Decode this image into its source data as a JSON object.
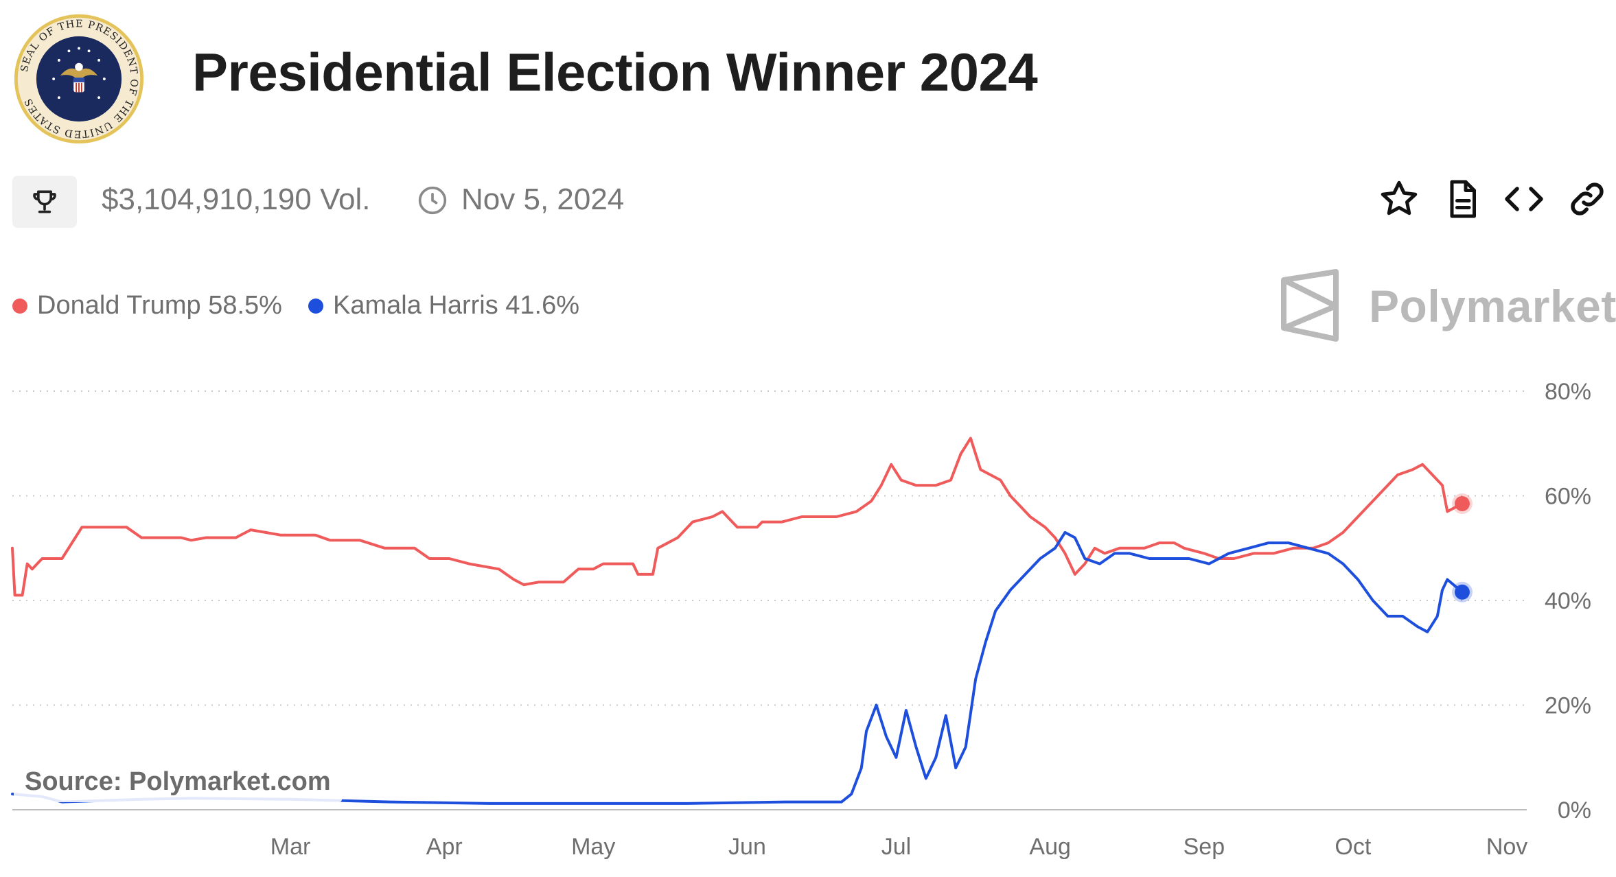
{
  "header": {
    "title": "Presidential Election Winner 2024",
    "seal_text": "SEAL OF THE PRESIDENT OF THE UNITED STATES",
    "volume": "$3,104,910,190 Vol.",
    "end_date": "Nov 5, 2024"
  },
  "icons": {
    "trophy": "trophy-icon",
    "clock": "clock-icon",
    "star": "star-icon",
    "document": "document-icon",
    "embed": "code-icon",
    "link": "link-icon"
  },
  "legend": {
    "items": [
      {
        "label": "Donald Trump 58.5%",
        "color": "#ef5a5a"
      },
      {
        "label": "Kamala Harris 41.6%",
        "color": "#1d4fdc"
      }
    ]
  },
  "branding": {
    "name": "Polymarket",
    "source": "Source: Polymarket.com"
  },
  "chart_data": {
    "type": "line",
    "title": "Presidential Election Winner 2024",
    "ylim": [
      0,
      80
    ],
    "y_ticks": [
      0,
      20,
      40,
      60,
      80
    ],
    "y_tick_labels": [
      "0%",
      "20%",
      "40%",
      "60%",
      "80%"
    ],
    "x_ticks": [
      {
        "label": "Mar",
        "day": 60
      },
      {
        "label": "Apr",
        "day": 91
      },
      {
        "label": "May",
        "day": 121
      },
      {
        "label": "Jun",
        "day": 152
      },
      {
        "label": "Jul",
        "day": 182
      },
      {
        "label": "Aug",
        "day": 213
      },
      {
        "label": "Sep",
        "day": 244
      },
      {
        "label": "Oct",
        "day": 274
      },
      {
        "label": "Nov",
        "day": 305
      }
    ],
    "x_range": [
      4,
      309
    ],
    "series": [
      {
        "name": "Donald Trump",
        "color": "#ef5a5a",
        "final": 58.5,
        "points": [
          [
            4,
            50
          ],
          [
            4.5,
            41
          ],
          [
            6,
            41
          ],
          [
            7,
            47
          ],
          [
            8,
            46
          ],
          [
            10,
            48
          ],
          [
            14,
            48
          ],
          [
            18,
            54
          ],
          [
            27,
            54
          ],
          [
            30,
            52
          ],
          [
            38,
            52
          ],
          [
            40,
            51.5
          ],
          [
            43,
            52
          ],
          [
            49,
            52
          ],
          [
            52,
            53.5
          ],
          [
            55,
            53
          ],
          [
            58,
            52.5
          ],
          [
            65,
            52.5
          ],
          [
            68,
            51.5
          ],
          [
            74,
            51.5
          ],
          [
            79,
            50
          ],
          [
            85,
            50
          ],
          [
            88,
            48
          ],
          [
            92,
            48
          ],
          [
            96,
            47
          ],
          [
            102,
            46
          ],
          [
            105,
            44
          ],
          [
            107,
            43
          ],
          [
            110,
            43.5
          ],
          [
            115,
            43.5
          ],
          [
            118,
            46
          ],
          [
            121,
            46
          ],
          [
            123,
            47
          ],
          [
            129,
            47
          ],
          [
            130,
            45
          ],
          [
            133,
            45
          ],
          [
            134,
            50
          ],
          [
            138,
            52
          ],
          [
            141,
            55
          ],
          [
            145,
            56
          ],
          [
            147,
            57
          ],
          [
            150,
            54
          ],
          [
            154,
            54
          ],
          [
            155,
            55
          ],
          [
            159,
            55
          ],
          [
            163,
            56
          ],
          [
            170,
            56
          ],
          [
            174,
            57
          ],
          [
            177,
            59
          ],
          [
            179,
            62
          ],
          [
            181,
            66
          ],
          [
            183,
            63
          ],
          [
            186,
            62
          ],
          [
            190,
            62
          ],
          [
            193,
            63
          ],
          [
            195,
            68
          ],
          [
            197,
            71
          ],
          [
            199,
            65
          ],
          [
            201,
            64
          ],
          [
            203,
            63
          ],
          [
            205,
            60
          ],
          [
            207,
            58
          ],
          [
            209,
            56
          ],
          [
            212,
            54
          ],
          [
            214,
            52
          ],
          [
            216,
            49
          ],
          [
            218,
            45
          ],
          [
            220,
            47
          ],
          [
            222,
            50
          ],
          [
            224,
            49
          ],
          [
            227,
            50
          ],
          [
            232,
            50
          ],
          [
            235,
            51
          ],
          [
            238,
            51
          ],
          [
            240,
            50
          ],
          [
            244,
            49
          ],
          [
            247,
            48
          ],
          [
            250,
            48
          ],
          [
            254,
            49
          ],
          [
            258,
            49
          ],
          [
            262,
            50
          ],
          [
            266,
            50
          ],
          [
            269,
            51
          ],
          [
            272,
            53
          ],
          [
            275,
            56
          ],
          [
            278,
            59
          ],
          [
            281,
            62
          ],
          [
            283,
            64
          ],
          [
            286,
            65
          ],
          [
            288,
            66
          ],
          [
            290,
            64
          ],
          [
            292,
            62
          ],
          [
            293,
            57
          ],
          [
            296,
            58.5
          ]
        ]
      },
      {
        "name": "Kamala Harris",
        "color": "#1d4fdc",
        "final": 41.6,
        "points": [
          [
            4,
            3
          ],
          [
            10,
            2.5
          ],
          [
            14,
            1.5
          ],
          [
            30,
            2
          ],
          [
            40,
            2.2
          ],
          [
            60,
            2
          ],
          [
            80,
            1.5
          ],
          [
            100,
            1.2
          ],
          [
            120,
            1.2
          ],
          [
            140,
            1.2
          ],
          [
            160,
            1.5
          ],
          [
            171,
            1.5
          ],
          [
            173,
            3
          ],
          [
            175,
            8
          ],
          [
            176,
            15
          ],
          [
            178,
            20
          ],
          [
            180,
            14
          ],
          [
            182,
            10
          ],
          [
            184,
            19
          ],
          [
            186,
            12
          ],
          [
            188,
            6
          ],
          [
            190,
            10
          ],
          [
            192,
            18
          ],
          [
            194,
            8
          ],
          [
            196,
            12
          ],
          [
            198,
            25
          ],
          [
            200,
            32
          ],
          [
            202,
            38
          ],
          [
            205,
            42
          ],
          [
            208,
            45
          ],
          [
            211,
            48
          ],
          [
            214,
            50
          ],
          [
            216,
            53
          ],
          [
            218,
            52
          ],
          [
            220,
            48
          ],
          [
            223,
            47
          ],
          [
            226,
            49
          ],
          [
            229,
            49
          ],
          [
            233,
            48
          ],
          [
            237,
            48
          ],
          [
            241,
            48
          ],
          [
            245,
            47
          ],
          [
            249,
            49
          ],
          [
            253,
            50
          ],
          [
            257,
            51
          ],
          [
            261,
            51
          ],
          [
            265,
            50
          ],
          [
            269,
            49
          ],
          [
            272,
            47
          ],
          [
            275,
            44
          ],
          [
            278,
            40
          ],
          [
            281,
            37
          ],
          [
            284,
            37
          ],
          [
            287,
            35
          ],
          [
            289,
            34
          ],
          [
            291,
            37
          ],
          [
            292,
            42
          ],
          [
            293,
            44
          ],
          [
            296,
            41.6
          ]
        ]
      }
    ]
  }
}
